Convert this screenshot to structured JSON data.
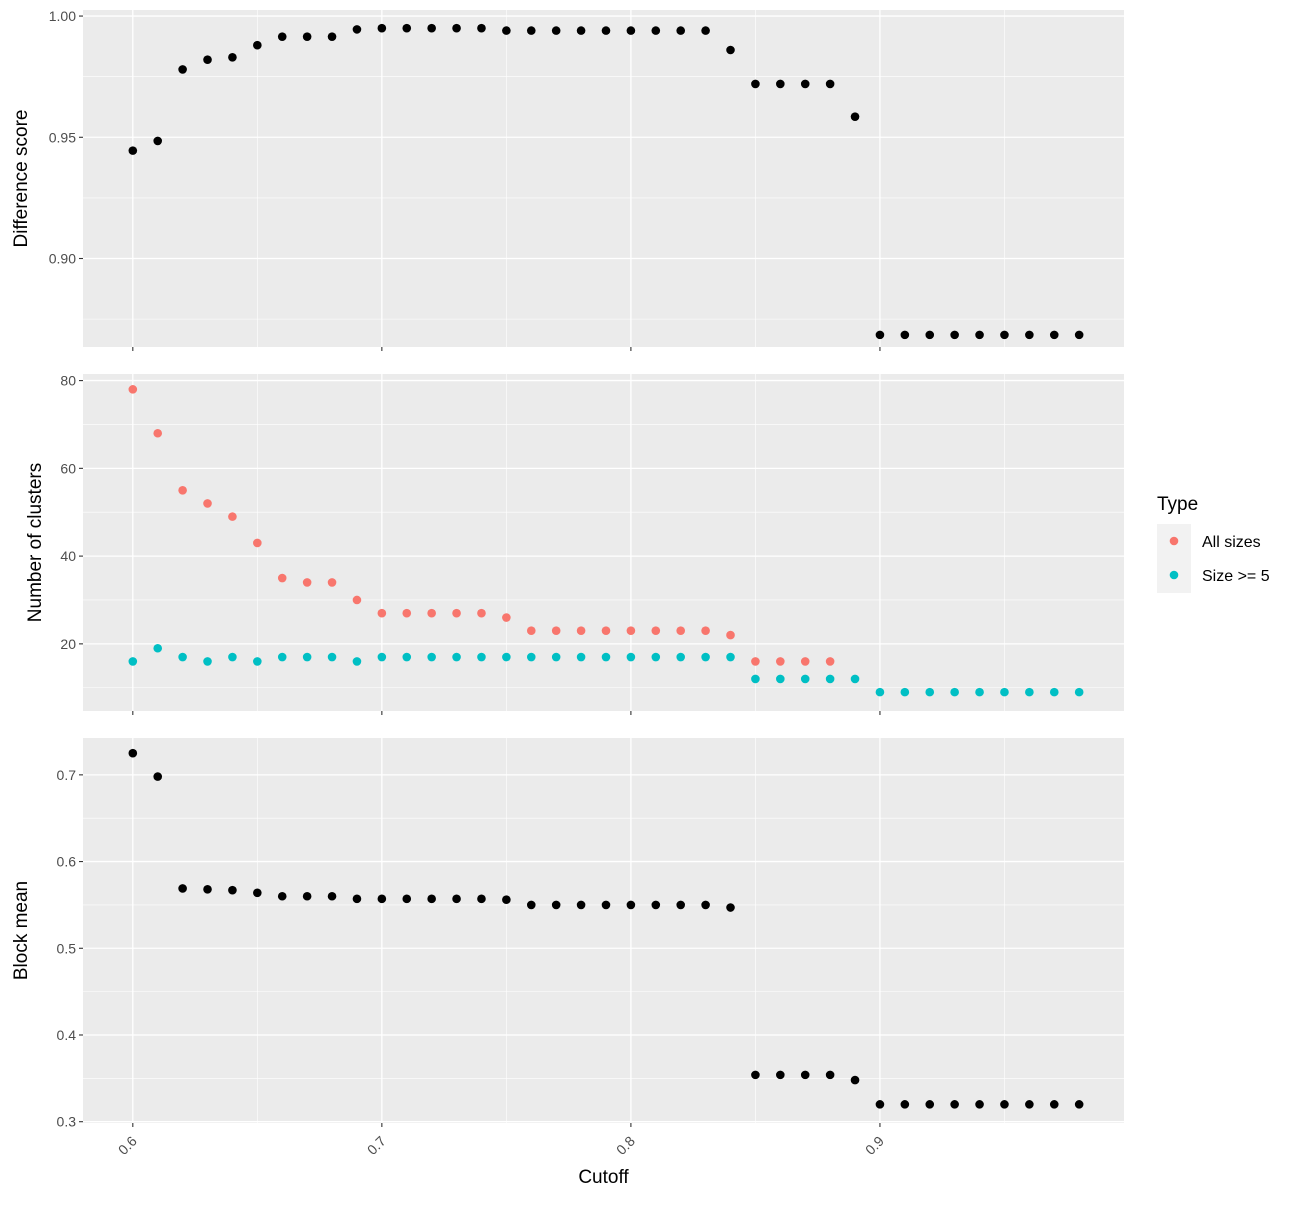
{
  "chart_data": {
    "type": "scatter",
    "x_label": "Cutoff",
    "x_ticks": [
      0.6,
      0.7,
      0.8,
      0.9
    ],
    "x_tick_labels": [
      "0.6",
      "0.7",
      "0.8",
      "0.9"
    ],
    "x_range": [
      0.58,
      0.998
    ],
    "x": [
      0.6,
      0.61,
      0.62,
      0.63,
      0.64,
      0.65,
      0.66,
      0.67,
      0.68,
      0.69,
      0.7,
      0.71,
      0.72,
      0.73,
      0.74,
      0.75,
      0.76,
      0.77,
      0.78,
      0.79,
      0.8,
      0.81,
      0.82,
      0.83,
      0.84,
      0.85,
      0.86,
      0.87,
      0.88,
      0.89,
      0.9,
      0.91,
      0.92,
      0.93,
      0.94,
      0.95,
      0.96,
      0.97,
      0.98
    ],
    "grid": true,
    "legend": {
      "title": "Type",
      "position": "right",
      "entries": [
        {
          "label": "All sizes",
          "color": "#F8766D"
        },
        {
          "label": "Size >= 5",
          "color": "#00BFC4"
        }
      ]
    },
    "panels": [
      {
        "ylabel": "Difference score",
        "ylim": [
          0.8635,
          1.0025
        ],
        "y_ticks": [
          0.9,
          0.95,
          1.0
        ],
        "y_tick_labels": [
          "0.90",
          "0.95",
          "1.00"
        ],
        "series": [
          {
            "color": "#000000",
            "values": [
              0.9445,
              0.9485,
              0.978,
              0.982,
              0.983,
              0.988,
              0.9915,
              0.9915,
              0.9915,
              0.9945,
              0.995,
              0.995,
              0.995,
              0.995,
              0.995,
              0.994,
              0.994,
              0.994,
              0.994,
              0.994,
              0.994,
              0.994,
              0.994,
              0.994,
              0.986,
              0.972,
              0.972,
              0.972,
              0.972,
              0.9585,
              0.8685,
              0.8685,
              0.8685,
              0.8685,
              0.8685,
              0.8685,
              0.8685,
              0.8685,
              0.8685
            ]
          }
        ]
      },
      {
        "ylabel": "Number of clusters",
        "ylim": [
          4.7,
          81.5
        ],
        "y_ticks": [
          20,
          40,
          60,
          80
        ],
        "y_tick_labels": [
          "20",
          "40",
          "60",
          "80"
        ],
        "series": [
          {
            "name": "All sizes",
            "color": "#F8766D",
            "values": [
              78,
              68,
              55,
              52,
              49,
              43,
              35,
              34,
              34,
              30,
              27,
              27,
              27,
              27,
              27,
              26,
              23,
              23,
              23,
              23,
              23,
              23,
              23,
              23,
              22,
              16,
              16,
              16,
              16,
              null,
              null,
              null,
              null,
              null,
              null,
              null,
              null,
              null,
              null
            ]
          },
          {
            "name": "Size >= 5",
            "color": "#00BFC4",
            "values": [
              16,
              19,
              17,
              16,
              17,
              16,
              17,
              17,
              17,
              16,
              17,
              17,
              17,
              17,
              17,
              17,
              17,
              17,
              17,
              17,
              17,
              17,
              17,
              17,
              17,
              12,
              12,
              12,
              12,
              12,
              9,
              9,
              9,
              9,
              9,
              9,
              9,
              9,
              9
            ]
          }
        ]
      },
      {
        "ylabel": "Block mean",
        "ylim": [
          0.2985,
          0.7425
        ],
        "y_ticks": [
          0.3,
          0.4,
          0.5,
          0.6,
          0.7
        ],
        "y_tick_labels": [
          "0.3",
          "0.4",
          "0.5",
          "0.6",
          "0.7"
        ],
        "series": [
          {
            "color": "#000000",
            "values": [
              0.725,
              0.698,
              0.569,
              0.568,
              0.567,
              0.564,
              0.56,
              0.56,
              0.56,
              0.557,
              0.557,
              0.557,
              0.557,
              0.557,
              0.557,
              0.556,
              0.55,
              0.55,
              0.55,
              0.55,
              0.55,
              0.55,
              0.55,
              0.55,
              0.547,
              0.354,
              0.354,
              0.354,
              0.354,
              0.348,
              0.32,
              0.32,
              0.32,
              0.32,
              0.32,
              0.32,
              0.32,
              0.32,
              0.32
            ]
          }
        ]
      }
    ]
  }
}
